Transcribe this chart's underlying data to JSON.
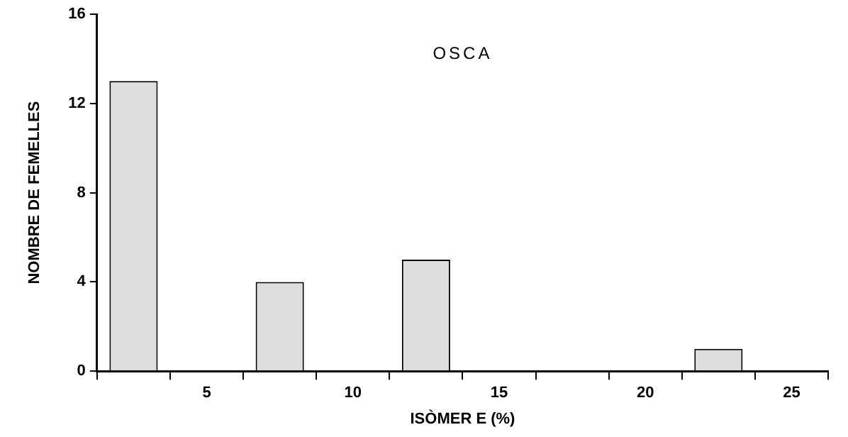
{
  "chart_data": {
    "type": "bar",
    "xlabel": "ISÒMER E (%)",
    "ylabel": "NOMBRE DE FEMELLES",
    "annotations": [
      "OSCA"
    ],
    "categories": [
      null,
      "5",
      null,
      "10",
      null,
      "15",
      null,
      "20",
      null,
      "25"
    ],
    "values": [
      13,
      0,
      4,
      0,
      5,
      0,
      0,
      0,
      1,
      0
    ],
    "color": "#dddddd",
    "ylim": [
      0,
      16
    ],
    "yticks": [
      0,
      4,
      8,
      12,
      16
    ],
    "grid": false,
    "legend": false
  }
}
